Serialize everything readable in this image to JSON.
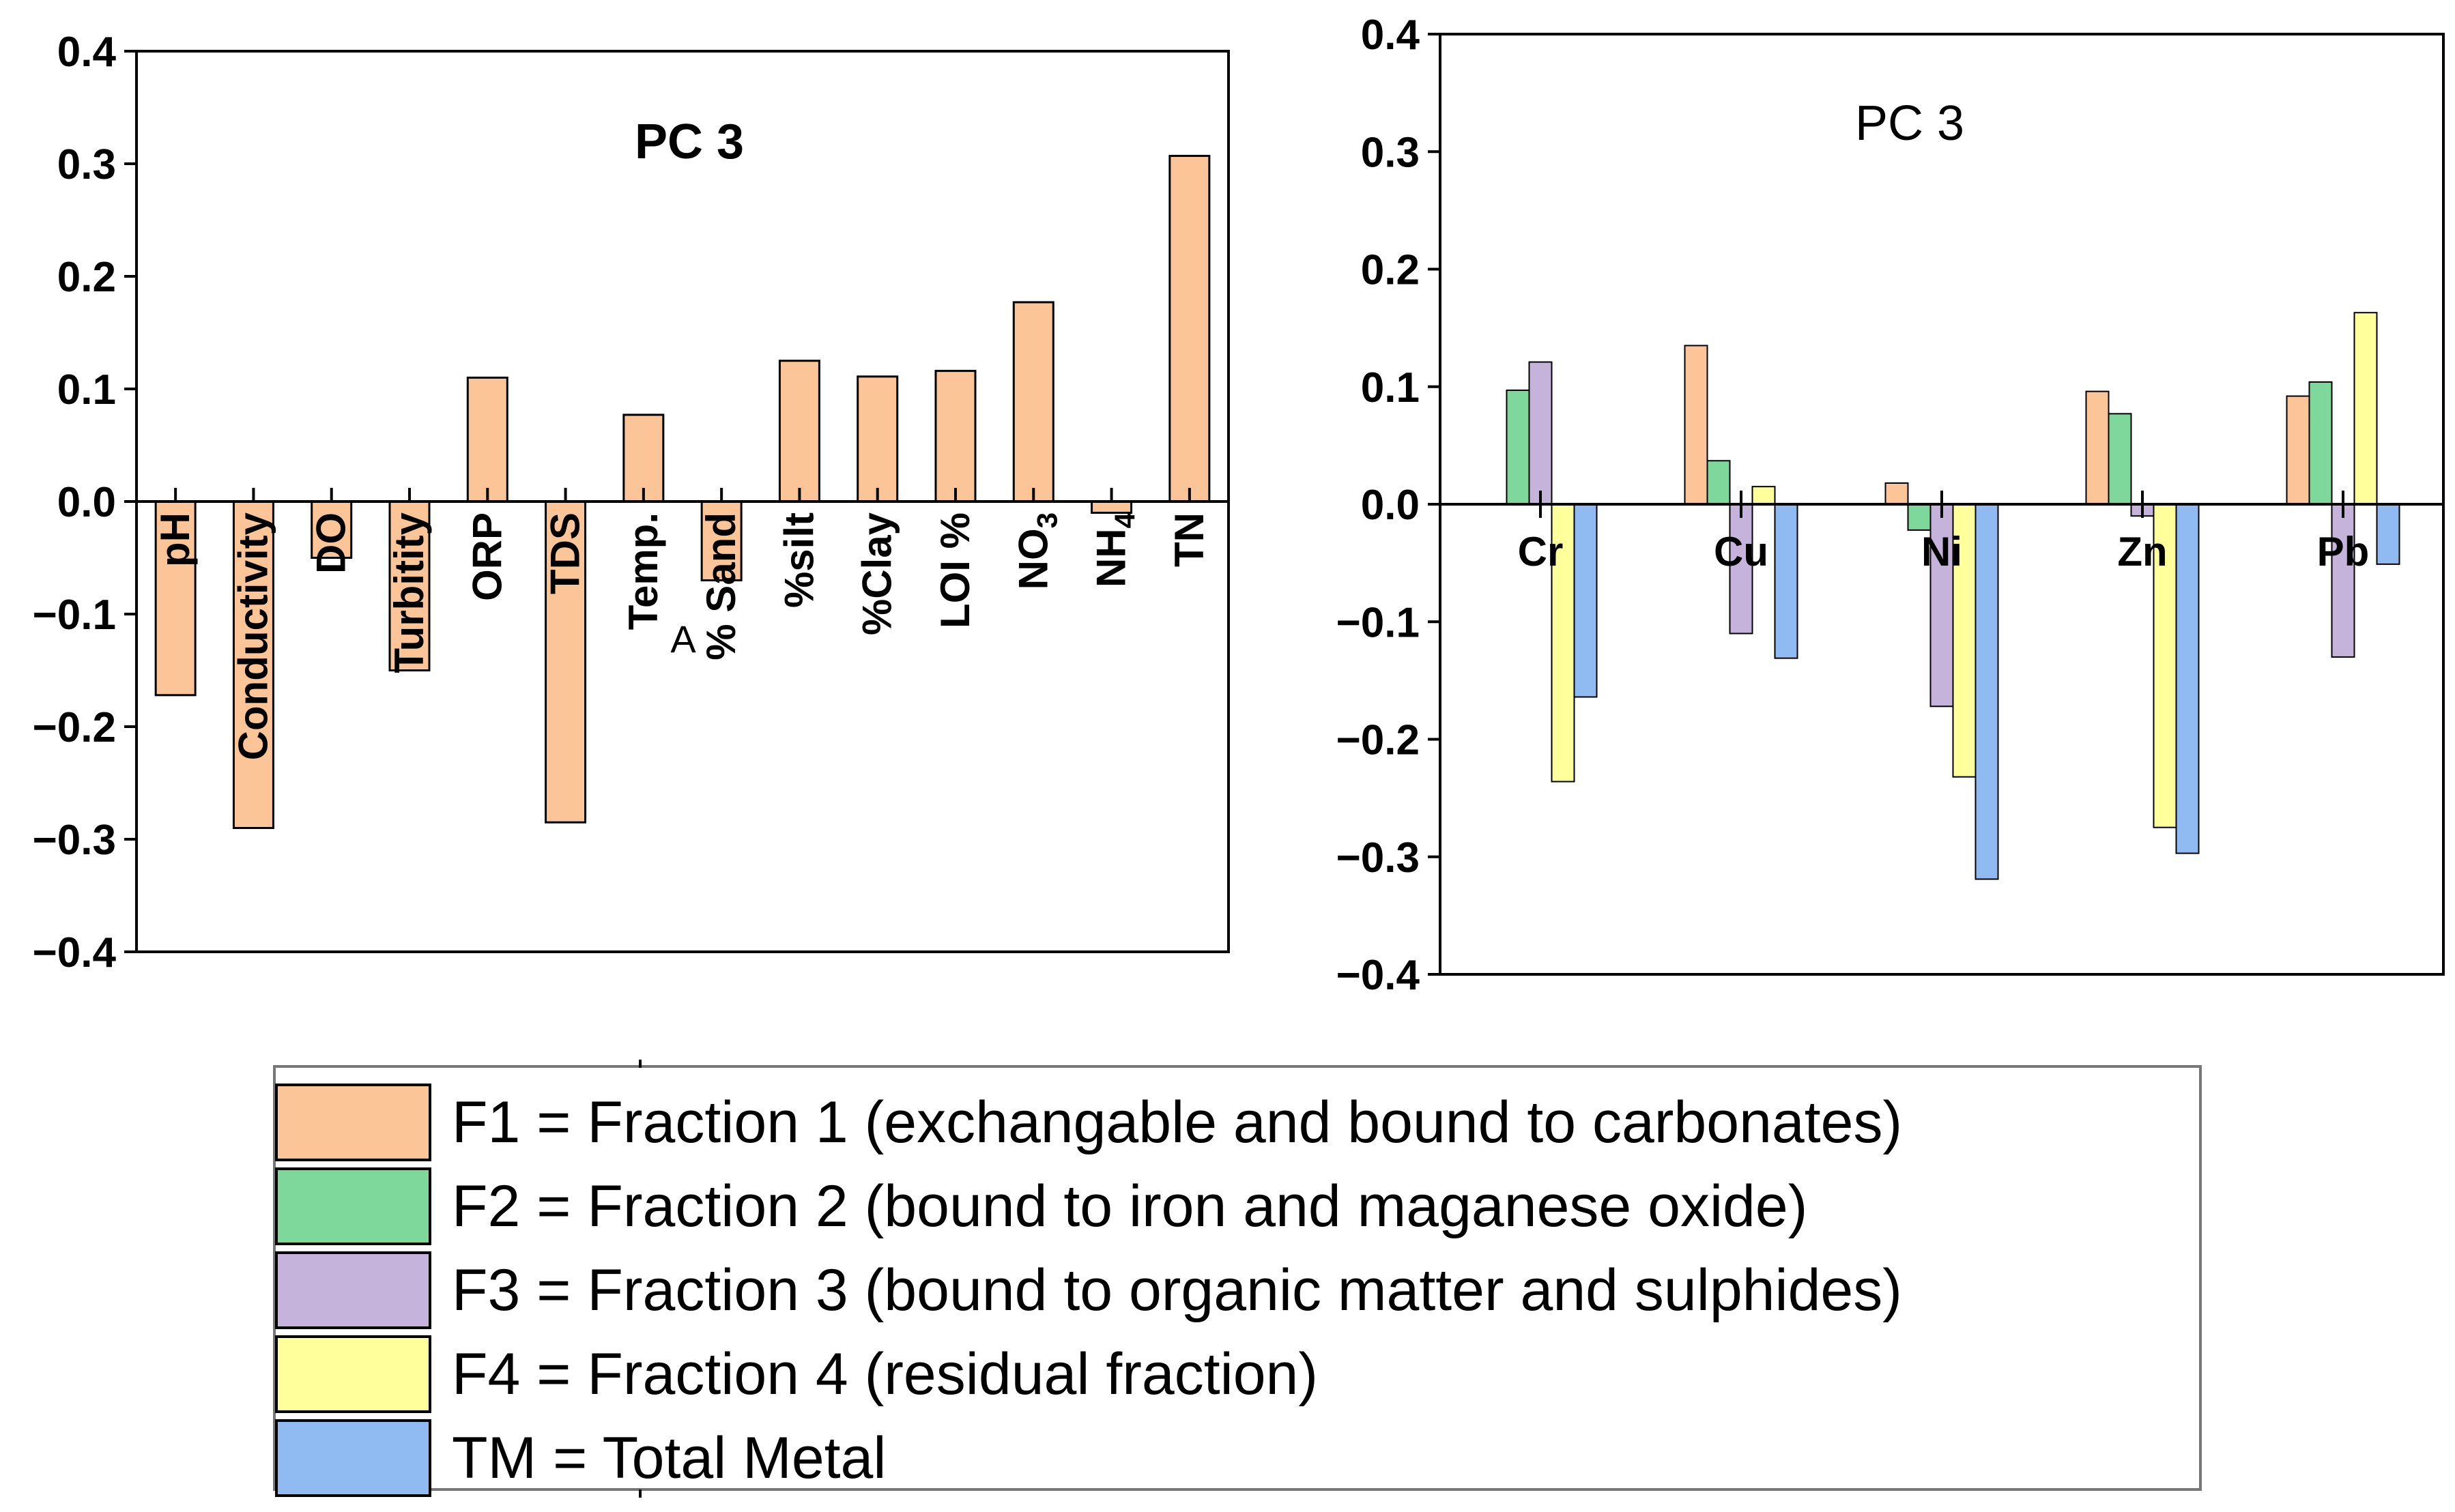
{
  "chart_data": [
    {
      "type": "bar",
      "title": "PC 3",
      "title_weight": "bold",
      "xlabel": "",
      "ylabel": "",
      "ylim": [
        -0.4,
        0.4
      ],
      "yticks": [
        0.4,
        0.3,
        0.2,
        0.1,
        0.0,
        -0.1,
        -0.2,
        -0.3,
        -0.4
      ],
      "ytick_labels": [
        "0.4",
        "0.3",
        "0.2",
        "0.1",
        "0.0",
        "−0.1",
        "−0.2",
        "−0.3",
        "−0.4"
      ],
      "categories": [
        "pH",
        "Conductivity",
        "DO",
        "Turbitity",
        "ORP",
        "TDS",
        "Temp.",
        "% Sand",
        "%silt",
        "%Clay",
        "LOI %",
        "NO3",
        "NH4",
        "TN"
      ],
      "category_subscripts": {
        "NO3": [
          "NO",
          "3"
        ],
        "NH4": [
          "NH",
          "4"
        ]
      },
      "values": [
        -0.172,
        -0.29,
        -0.05,
        -0.15,
        0.11,
        -0.285,
        0.077,
        -0.07,
        0.125,
        0.111,
        0.116,
        0.177,
        -0.01,
        0.307
      ],
      "annotation": "A",
      "color": "#fbc598"
    },
    {
      "type": "bar",
      "title": "PC 3",
      "title_weight": "normal",
      "xlabel": "",
      "ylabel": "",
      "ylim": [
        -0.4,
        0.4
      ],
      "yticks": [
        0.4,
        0.3,
        0.2,
        0.1,
        0.0,
        -0.1,
        -0.2,
        -0.3,
        -0.4
      ],
      "ytick_labels": [
        "0.4",
        "0.3",
        "0.2",
        "0.1",
        "0.0",
        "−0.1",
        "−0.2",
        "−0.3",
        "−0.4"
      ],
      "categories": [
        "Cr",
        "Cu",
        "Ni",
        "Zn",
        "Pb"
      ],
      "series": [
        {
          "name": "F1",
          "color": "#fbc598",
          "values": [
            0.0,
            0.135,
            0.018,
            0.096,
            0.092
          ]
        },
        {
          "name": "F2",
          "color": "#7fd89b",
          "values": [
            0.097,
            0.037,
            -0.022,
            0.077,
            0.104
          ]
        },
        {
          "name": "F3",
          "color": "#c6b3dc",
          "values": [
            0.121,
            -0.11,
            -0.172,
            -0.01,
            -0.13
          ]
        },
        {
          "name": "F4",
          "color": "#ffff9c",
          "values": [
            -0.236,
            0.015,
            -0.232,
            -0.275,
            0.163
          ]
        },
        {
          "name": "TM",
          "color": "#8fbbf2",
          "values": [
            -0.164,
            -0.131,
            -0.319,
            -0.297,
            -0.051
          ]
        }
      ]
    }
  ],
  "legend": {
    "items": [
      {
        "label": "F1 = Fraction 1 (exchangable and bound to carbonates)",
        "color": "#fbc598"
      },
      {
        "label": "F2 = Fraction 2 (bound to iron and maganese oxide)",
        "color": "#7fd89b"
      },
      {
        "label": "F3 = Fraction 3 (bound to organic matter and sulphides)",
        "color": "#c6b3dc"
      },
      {
        "label": "F4 = Fraction 4 (residual fraction)",
        "color": "#ffff9c"
      },
      {
        "label": "TM = Total Metal",
        "color": "#8fbbf2"
      }
    ]
  }
}
